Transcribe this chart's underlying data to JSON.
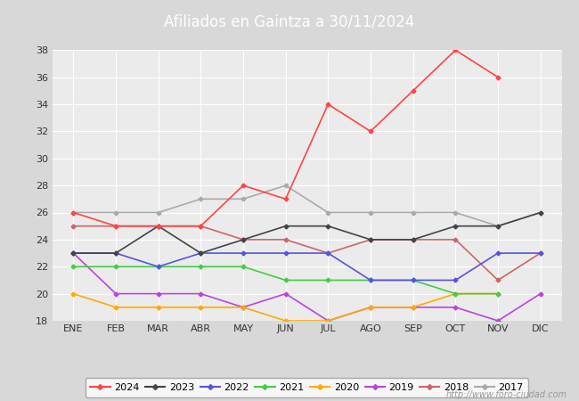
{
  "title": "Afiliados en Gaintza a 30/11/2024",
  "months": [
    "ENE",
    "FEB",
    "MAR",
    "ABR",
    "MAY",
    "JUN",
    "JUL",
    "AGO",
    "SEP",
    "OCT",
    "NOV",
    "DIC"
  ],
  "ylim": [
    18,
    38
  ],
  "yticks": [
    18,
    20,
    22,
    24,
    26,
    28,
    30,
    32,
    34,
    36,
    38
  ],
  "series": {
    "2024": {
      "color": "#ff4444",
      "data": [
        26,
        25,
        25,
        25,
        28,
        27,
        34,
        32,
        35,
        38,
        36,
        null
      ]
    },
    "2023": {
      "color": "#444444",
      "data": [
        23,
        23,
        25,
        23,
        24,
        25,
        25,
        24,
        24,
        25,
        25,
        26
      ]
    },
    "2022": {
      "color": "#5555dd",
      "data": [
        23,
        23,
        22,
        23,
        23,
        23,
        23,
        21,
        21,
        21,
        23,
        23
      ]
    },
    "2021": {
      "color": "#44cc44",
      "data": [
        22,
        22,
        22,
        22,
        22,
        21,
        21,
        21,
        21,
        20,
        20,
        null
      ]
    },
    "2020": {
      "color": "#ffaa00",
      "data": [
        20,
        19,
        19,
        19,
        19,
        18,
        18,
        19,
        19,
        20,
        20,
        null
      ]
    },
    "2019": {
      "color": "#bb44dd",
      "data": [
        23,
        20,
        20,
        20,
        19,
        20,
        18,
        19,
        19,
        19,
        18,
        20
      ]
    },
    "2018": {
      "color": "#cc6666",
      "data": [
        25,
        25,
        25,
        25,
        24,
        24,
        23,
        24,
        24,
        24,
        21,
        23
      ]
    },
    "2017": {
      "color": "#aaaaaa",
      "data": [
        26,
        26,
        26,
        27,
        27,
        28,
        26,
        26,
        26,
        26,
        25,
        26
      ]
    }
  },
  "bg_plot": "#ebebeb",
  "bg_figure": "#d8d8d8",
  "bg_title": "#4169b8",
  "grid_color": "#ffffff",
  "watermark": "http://www.foro-ciudad.com",
  "legend_years": [
    "2024",
    "2023",
    "2022",
    "2021",
    "2020",
    "2019",
    "2018",
    "2017"
  ]
}
